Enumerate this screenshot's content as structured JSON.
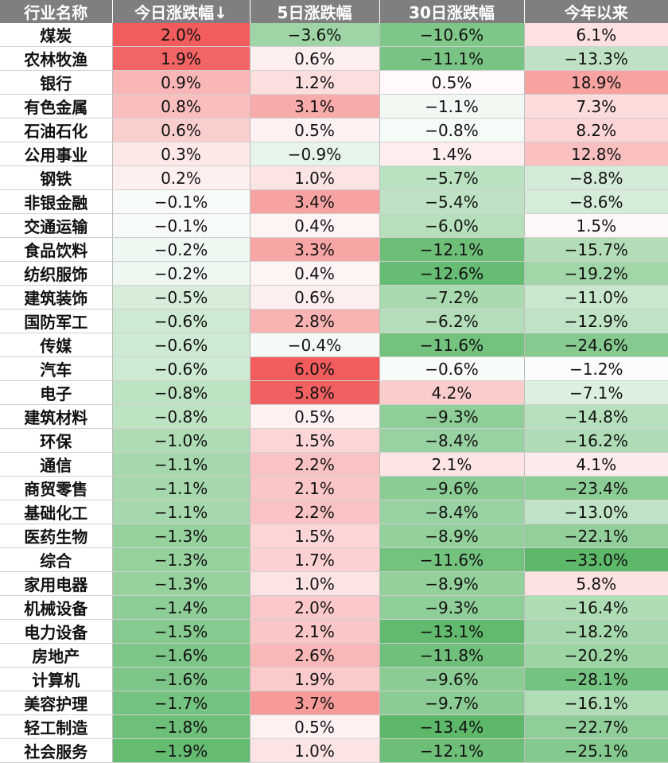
{
  "chart_data": {
    "type": "table",
    "columns": [
      "行业名称",
      "今日涨跌幅↓",
      "5日涨跌幅",
      "30日涨跌幅",
      "今年以来"
    ],
    "rows": [
      [
        "煤炭",
        2.0,
        -3.6,
        -10.6,
        6.1
      ],
      [
        "农林牧渔",
        1.9,
        0.6,
        -11.1,
        -13.3
      ],
      [
        "银行",
        0.9,
        1.2,
        0.5,
        18.9
      ],
      [
        "有色金属",
        0.8,
        3.1,
        -1.1,
        7.3
      ],
      [
        "石油石化",
        0.6,
        0.5,
        -0.8,
        8.2
      ],
      [
        "公用事业",
        0.3,
        -0.9,
        1.4,
        12.8
      ],
      [
        "钢铁",
        0.2,
        1.0,
        -5.7,
        -8.8
      ],
      [
        "非银金融",
        -0.1,
        3.4,
        -5.4,
        -8.6
      ],
      [
        "交通运输",
        -0.1,
        0.4,
        -6.0,
        1.5
      ],
      [
        "食品饮料",
        -0.2,
        3.3,
        -12.1,
        -15.7
      ],
      [
        "纺织服饰",
        -0.2,
        0.4,
        -12.6,
        -19.2
      ],
      [
        "建筑装饰",
        -0.5,
        0.6,
        -7.2,
        -11.0
      ],
      [
        "国防军工",
        -0.6,
        2.8,
        -6.2,
        -12.9
      ],
      [
        "传媒",
        -0.6,
        -0.4,
        -11.6,
        -24.6
      ],
      [
        "汽车",
        -0.6,
        6.0,
        -0.6,
        -1.2
      ],
      [
        "电子",
        -0.8,
        5.8,
        4.2,
        -7.1
      ],
      [
        "建筑材料",
        -0.8,
        0.5,
        -9.3,
        -14.8
      ],
      [
        "环保",
        -1.0,
        1.5,
        -8.4,
        -16.2
      ],
      [
        "通信",
        -1.1,
        2.2,
        2.1,
        4.1
      ],
      [
        "商贸零售",
        -1.1,
        2.1,
        -9.6,
        -23.4
      ],
      [
        "基础化工",
        -1.1,
        2.2,
        -8.4,
        -13.0
      ],
      [
        "医药生物",
        -1.3,
        1.5,
        -8.9,
        -22.1
      ],
      [
        "综合",
        -1.3,
        1.7,
        -11.6,
        -33.0
      ],
      [
        "家用电器",
        -1.3,
        1.0,
        -8.9,
        5.8
      ],
      [
        "机械设备",
        -1.4,
        2.0,
        -9.3,
        -16.4
      ],
      [
        "电力设备",
        -1.5,
        2.1,
        -13.1,
        -18.2
      ],
      [
        "房地产",
        -1.6,
        2.6,
        -11.8,
        -20.2
      ],
      [
        "计算机",
        -1.6,
        1.9,
        -9.6,
        -28.1
      ],
      [
        "美容护理",
        -1.7,
        3.7,
        -9.7,
        -16.1
      ],
      [
        "轻工制造",
        -1.8,
        0.5,
        -13.4,
        -22.7
      ],
      [
        "社会服务",
        -1.9,
        1.0,
        -12.1,
        -25.1
      ]
    ],
    "colors": {
      "header_bg": "#7f7f7f",
      "header_text": "#ffffff",
      "positive_max": "#f25c5c",
      "negative_max": "#5db86a",
      "neutral": "#ffffff"
    }
  }
}
